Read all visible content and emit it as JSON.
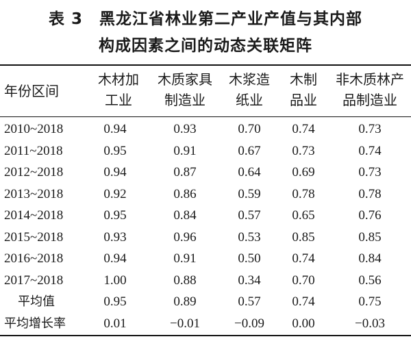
{
  "title": {
    "line1": "表 3　黑龙江省林业第二产业产值与其内部",
    "line2": "构成因素之间的动态关联矩阵"
  },
  "table": {
    "headers": [
      [
        "年份区间"
      ],
      [
        "木材加",
        "工业"
      ],
      [
        "木质家具",
        "制造业"
      ],
      [
        "木浆造",
        "纸业"
      ],
      [
        "木制",
        "品业"
      ],
      [
        "非木质林产",
        "品制造业"
      ]
    ],
    "rows": [
      {
        "label": "2010~2018",
        "values": [
          "0.94",
          "0.93",
          "0.70",
          "0.74",
          "0.73"
        ]
      },
      {
        "label": "2011~2018",
        "values": [
          "0.95",
          "0.91",
          "0.67",
          "0.73",
          "0.74"
        ]
      },
      {
        "label": "2012~2018",
        "values": [
          "0.94",
          "0.87",
          "0.64",
          "0.69",
          "0.73"
        ]
      },
      {
        "label": "2013~2018",
        "values": [
          "0.92",
          "0.86",
          "0.59",
          "0.78",
          "0.78"
        ]
      },
      {
        "label": "2014~2018",
        "values": [
          "0.95",
          "0.84",
          "0.57",
          "0.65",
          "0.76"
        ]
      },
      {
        "label": "2015~2018",
        "values": [
          "0.93",
          "0.96",
          "0.53",
          "0.85",
          "0.85"
        ]
      },
      {
        "label": "2016~2018",
        "values": [
          "0.94",
          "0.91",
          "0.50",
          "0.74",
          "0.84"
        ]
      },
      {
        "label": "2017~2018",
        "values": [
          "1.00",
          "0.88",
          "0.34",
          "0.70",
          "0.56"
        ]
      },
      {
        "label": "平均值",
        "values": [
          "0.95",
          "0.89",
          "0.57",
          "0.74",
          "0.75"
        ]
      },
      {
        "label": "平均增长率",
        "values": [
          "0.01",
          "−0.01",
          "−0.09",
          "0.00",
          "−0.03"
        ]
      }
    ]
  }
}
